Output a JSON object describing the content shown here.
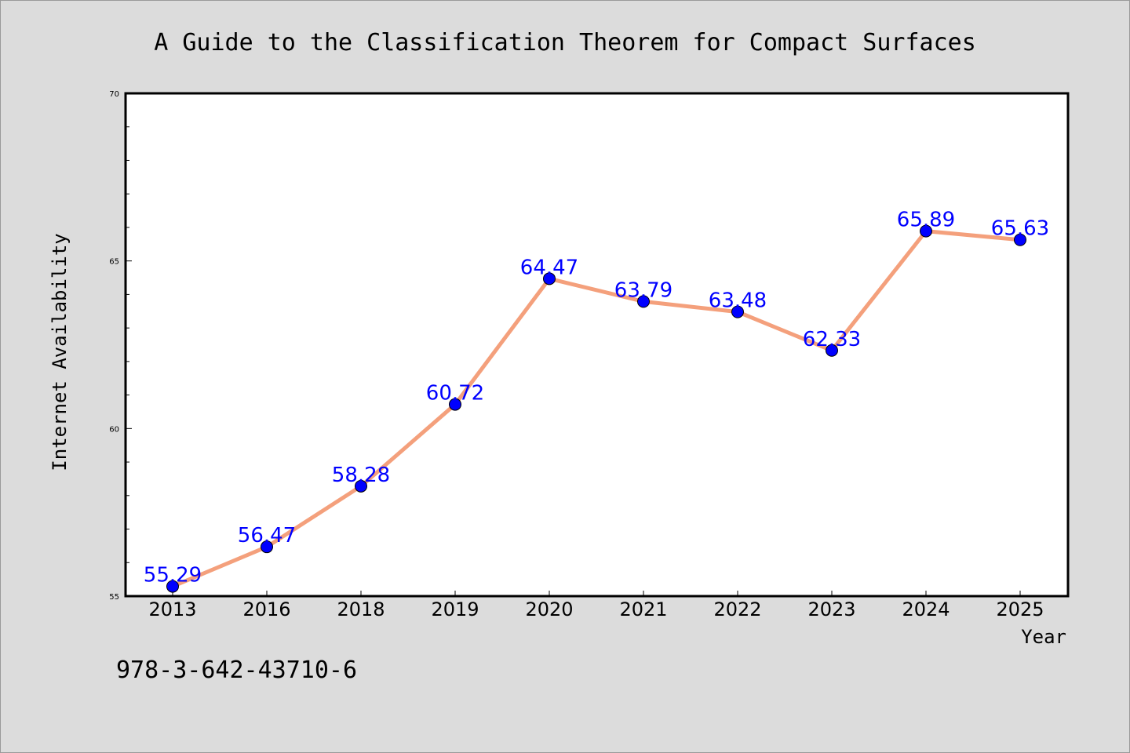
{
  "chart_data": {
    "type": "line",
    "title": "A Guide to the Classification Theorem for Compact Surfaces",
    "xlabel": "Year",
    "ylabel": "Internet Availability",
    "categories": [
      "2013",
      "2016",
      "2018",
      "2019",
      "2020",
      "2021",
      "2022",
      "2023",
      "2024",
      "2025"
    ],
    "series": [
      {
        "values": [
          55.29,
          56.47,
          58.28,
          60.72,
          64.47,
          63.79,
          63.48,
          62.33,
          65.89,
          65.63
        ],
        "labels": [
          "55.29",
          "56.47",
          "58.28",
          "60.72",
          "64.47",
          "63.79",
          "63.48",
          "62.33",
          "65.89",
          "65.63"
        ]
      }
    ],
    "ylim": [
      55,
      70
    ],
    "yticks": [
      "55",
      "60",
      "65",
      "70"
    ],
    "grid": false,
    "colors": {
      "line": "#f4a07c",
      "marker": "#0000ff",
      "data_label": "#0000ff",
      "plot_background": "#ffffff",
      "page_background": "#dcdcdc"
    }
  },
  "footer": {
    "isbn": "978-3-642-43710-6"
  }
}
